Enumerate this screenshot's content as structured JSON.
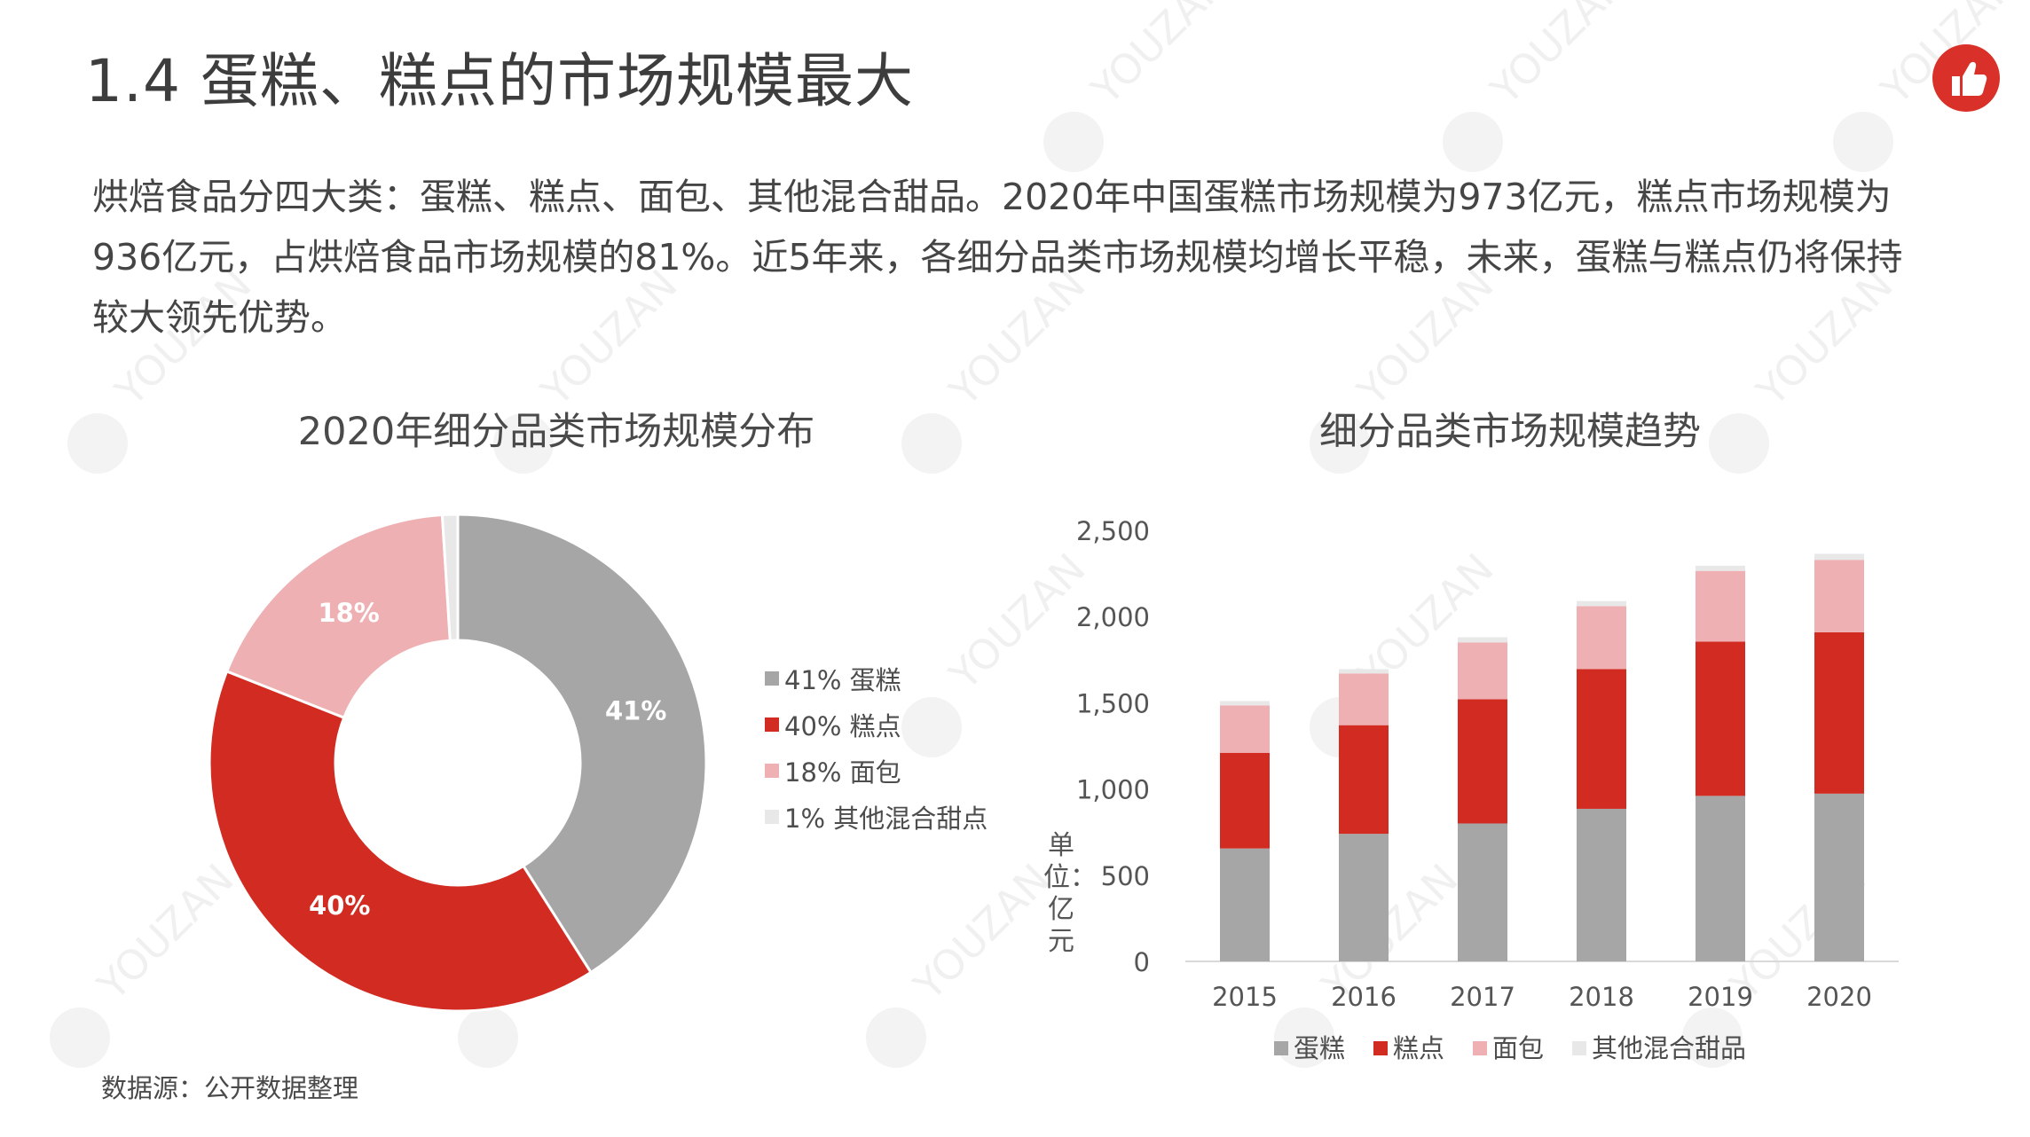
{
  "title": "1.4 蛋糕、糕点的市场规模最大",
  "intro": "烘焙食品分四大类：蛋糕、糕点、面包、其他混合甜品。2020年中国蛋糕市场规模为973亿元，糕点市场规模为936亿元，占烘焙食品市场规模的81%。近5年来，各细分品类市场规模均增长平稳，未来，蛋糕与糕点仍将保持较大领先优势。",
  "source": "数据源：公开数据整理",
  "watermark_text": "YOUZAN",
  "colors": {
    "cake": "#a6a6a6",
    "pastry": "#d12b22",
    "bread": "#eeb0b3",
    "other": "#e8e8e8",
    "brand": "#d9312a"
  },
  "icons": {
    "logo": "thumbs-up-icon"
  },
  "chart_data": [
    {
      "type": "pie",
      "title": "2020年细分品类市场规模分布",
      "categories": [
        "蛋糕",
        "糕点",
        "面包",
        "其他混合甜点"
      ],
      "values": [
        41,
        40,
        18,
        1
      ],
      "data_labels": [
        "41%",
        "40%",
        "18%",
        ""
      ],
      "legend": [
        "41% 蛋糕",
        "40% 糕点",
        "18% 面包",
        "1% 其他混合甜点"
      ],
      "legend_position": "right",
      "donut": true
    },
    {
      "type": "bar",
      "stacked": true,
      "title": "细分品类市场规模趋势",
      "ylabel": "单位：亿元",
      "ylim": [
        0,
        2500
      ],
      "yticks": [
        0,
        500,
        1000,
        1500,
        2000,
        2500
      ],
      "ytick_labels": [
        "0",
        "500",
        "1,000",
        "1,500",
        "2,000",
        "2,500"
      ],
      "categories": [
        "2015",
        "2016",
        "2017",
        "2018",
        "2019",
        "2020"
      ],
      "series": [
        {
          "name": "蛋糕",
          "values": [
            655,
            740,
            800,
            885,
            960,
            973
          ]
        },
        {
          "name": "糕点",
          "values": [
            555,
            630,
            720,
            810,
            895,
            936
          ]
        },
        {
          "name": "面包",
          "values": [
            275,
            300,
            330,
            365,
            410,
            420
          ]
        },
        {
          "name": "其他混合甜品",
          "values": [
            25,
            25,
            30,
            30,
            30,
            35
          ]
        }
      ],
      "legend_position": "bottom",
      "grid": false
    }
  ]
}
